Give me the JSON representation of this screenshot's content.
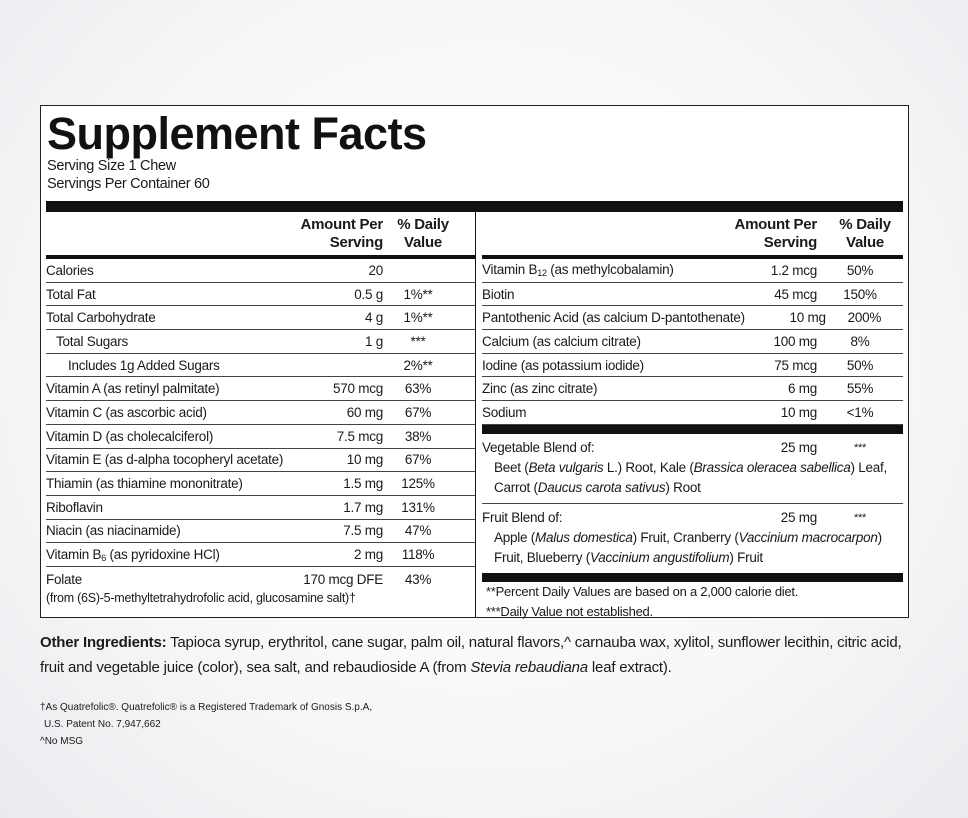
{
  "header": {
    "title": "Supplement Facts",
    "serving_size": "Serving Size 1 Chew",
    "servings": "Servings Per Container 60"
  },
  "left": {
    "amount_header": "Amount Per Serving",
    "dv_header": "% Daily Value",
    "rows": [
      {
        "name": "Calories",
        "amount": "20",
        "dv": null
      },
      {
        "name": "Total Fat",
        "amount": "0.5 g",
        "dv": "1%**"
      },
      {
        "name": "Total Carbohydrate",
        "amount": "4 g",
        "dv": "1%**"
      },
      {
        "name": "Total Sugars",
        "amount": "1 g",
        "dv": "***"
      },
      {
        "name": "Includes 1g Added Sugars",
        "amount": null,
        "dv": "2%**"
      },
      {
        "name": "Vitamin A (as retinyl palmitate)",
        "amount": "570 mcg",
        "dv": "63%"
      },
      {
        "name": "Vitamin C (as ascorbic acid)",
        "amount": "60 mg",
        "dv": "67%"
      },
      {
        "name": "Vitamin D (as cholecalciferol)",
        "amount": "7.5 mcg",
        "dv": "38%"
      },
      {
        "name": "Vitamin E (as d-alpha tocopheryl acetate)",
        "amount": "10 mg",
        "dv": "67%"
      },
      {
        "name": "Thiamin (as thiamine mononitrate)",
        "amount": "1.5 mg",
        "dv": "125%"
      },
      {
        "name": "Riboflavin",
        "amount": "1.7 mg",
        "dv": "131%"
      },
      {
        "name": "Niacin (as niacinamide)",
        "amount": "7.5 mg",
        "dv": "47%"
      },
      {
        "name": [
          "Vitamin B",
          "6",
          " (as pyridoxine HCl)"
        ],
        "amount": "2 mg",
        "dv": "118%"
      },
      {
        "name": "Folate",
        "amount": "170 mcg DFE",
        "dv": "43%",
        "note": "(from (6S)-5-methyltetrahydrofolic acid, glucosamine salt)†"
      }
    ]
  },
  "right": {
    "amount_header": "Amount Per Serving",
    "dv_header": "% Daily Value",
    "rows": [
      {
        "name": [
          "Vitamin B",
          "12",
          " (as methylcobalamin)"
        ],
        "amount": "1.2 mcg",
        "dv": "50%"
      },
      {
        "name": "Biotin",
        "amount": "45 mcg",
        "dv": "150%"
      },
      {
        "name": "Pantothenic Acid (as calcium D-pantothenate)",
        "amount": "10 mg",
        "dv": "200%"
      },
      {
        "name": "Calcium (as calcium citrate)",
        "amount": "100 mg",
        "dv": "8%"
      },
      {
        "name": "Iodine (as potassium iodide)",
        "amount": "75 mcg",
        "dv": "50%"
      },
      {
        "name": "Zinc (as zinc citrate)",
        "amount": "6 mg",
        "dv": "55%"
      },
      {
        "name": "Sodium",
        "amount": "10 mg",
        "dv": "<1%"
      }
    ],
    "blends": [
      {
        "name": "Vegetable Blend of:",
        "amount": "25 mg",
        "dv": "***",
        "description": [
          "Beet (",
          "Beta vulgaris",
          " L.) Root, Kale (",
          "Brassica oleracea sabellica",
          ") Leaf, Carrot (",
          "Daucus carota sativus",
          ") Root"
        ]
      },
      {
        "name": "Fruit Blend of:",
        "amount": "25 mg",
        "dv": "***",
        "description": [
          "Apple (",
          "Malus domestica",
          ") Fruit, Cranberry (",
          "Vaccinium macrocarpon",
          ") Fruit, Blueberry (",
          "Vaccinium angustifolium",
          ") Fruit"
        ]
      }
    ],
    "footnotes": [
      "**Percent Daily Values are based on a 2,000 calorie diet.",
      "***Daily Value not established."
    ]
  },
  "other_ingredients": {
    "label": "Other Ingredients:",
    "text": [
      " Tapioca syrup, erythritol, cane sugar, palm oil, natural flavors,^ carnauba wax, xylitol, sunflower lecithin, citric acid, fruit and vegetable juice (color), sea salt, and rebaudioside A (from ",
      "Stevia rebaudiana",
      " leaf extract)."
    ]
  },
  "footnotes": [
    "†As Quatrefolic®. Quatrefolic® is a Registered Trademark of Gnosis S.p.A,",
    "U.S. Patent No. 7,947,662",
    "^No MSG"
  ]
}
